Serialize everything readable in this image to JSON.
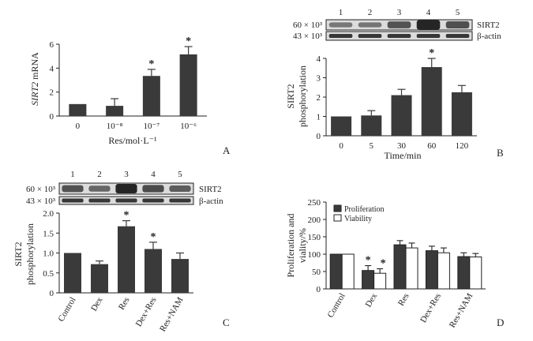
{
  "colors": {
    "bar": "#3a3a3a",
    "open": "#ffffff",
    "axis": "#222222",
    "blot_bg": "#dcdcdc",
    "band": "#1a1a1a"
  },
  "chart_data": [
    {
      "panel": "A",
      "type": "bar",
      "ylabel_italic": "SIRT2",
      "ylabel_rest": " mRNA",
      "xlabel": "Res/mol·L⁻¹",
      "categories": [
        "0",
        "10⁻⁸",
        "10⁻⁷",
        "10⁻⁶"
      ],
      "values": [
        1.0,
        0.85,
        3.35,
        5.15
      ],
      "errors": [
        0.0,
        0.6,
        0.55,
        0.65
      ],
      "significant": [
        false,
        false,
        true,
        true
      ],
      "ylim": [
        0,
        6
      ],
      "yticks": [
        "0",
        "2",
        "4",
        "6"
      ]
    },
    {
      "panel": "B",
      "type": "bar",
      "ylabel_line1": "SIRT2",
      "ylabel_line2": "phosphorylation",
      "xlabel": "Time/min",
      "categories": [
        "0",
        "5",
        "30",
        "60",
        "120"
      ],
      "values": [
        1.0,
        1.05,
        2.1,
        3.55,
        2.25
      ],
      "errors": [
        0.0,
        0.25,
        0.3,
        0.45,
        0.35
      ],
      "significant": [
        false,
        false,
        false,
        true,
        false
      ],
      "ylim": [
        0,
        4
      ],
      "yticks": [
        "0",
        "1",
        "2",
        "3",
        "4"
      ],
      "blot": {
        "lanes": [
          "1",
          "2",
          "3",
          "4",
          "5"
        ],
        "mw_top": "60 × 10³",
        "mw_bottom": "43 × 10³",
        "label_top": "SIRT2",
        "label_bottom": "β-actin"
      }
    },
    {
      "panel": "C",
      "type": "bar",
      "ylabel_line1": "SIRT2",
      "ylabel_line2": "phosphorylation",
      "categories": [
        "Control",
        "Dex",
        "Res",
        "Dex+Res",
        "Res+NAM"
      ],
      "values": [
        1.0,
        0.72,
        1.67,
        1.1,
        0.85
      ],
      "errors": [
        0.0,
        0.08,
        0.14,
        0.17,
        0.15
      ],
      "significant": [
        false,
        false,
        true,
        true,
        false
      ],
      "ylim": [
        0,
        2.0
      ],
      "yticks": [
        "0",
        "0.5",
        "1.0",
        "1.5",
        "2.0"
      ],
      "blot": {
        "lanes": [
          "1",
          "2",
          "3",
          "4",
          "5"
        ],
        "mw_top": "60 × 10³",
        "mw_bottom": "43 × 10³",
        "label_top": "SIRT2",
        "label_bottom": "β-actin"
      }
    },
    {
      "panel": "D",
      "type": "bar",
      "ylabel_line1": "Proliferation and",
      "ylabel_line2": "viality/%",
      "categories": [
        "Control",
        "Dex",
        "Res",
        "Dex+Res",
        "Res+NAM"
      ],
      "series": [
        {
          "name": "Proliferation",
          "values": [
            100,
            53,
            127,
            110,
            93
          ],
          "errors": [
            0,
            14,
            12,
            13,
            11
          ],
          "significant": [
            false,
            true,
            false,
            false,
            false
          ]
        },
        {
          "name": "Viability",
          "values": [
            100,
            45,
            118,
            104,
            92
          ],
          "errors": [
            0,
            13,
            14,
            14,
            10
          ],
          "significant": [
            false,
            true,
            false,
            false,
            false
          ]
        }
      ],
      "ylim": [
        0,
        250
      ],
      "yticks": [
        "0",
        "50",
        "100",
        "150",
        "200",
        "250"
      ],
      "legend_position": "top-left"
    }
  ],
  "star": "*"
}
